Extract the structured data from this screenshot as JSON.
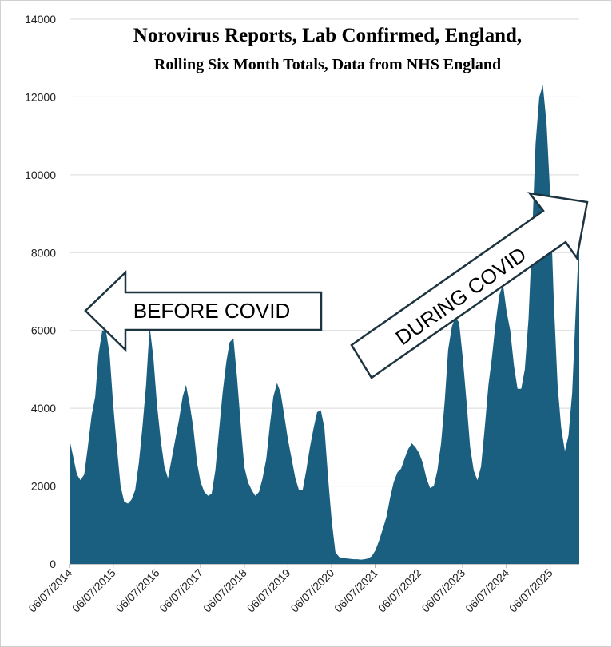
{
  "chart_data": {
    "type": "area",
    "title": "Norovirus Reports, Lab Confirmed, England,",
    "subtitle": "Rolling Six Month Totals, Data from NHS England",
    "annotations": [
      "BEFORE COVID",
      "DURING COVID"
    ],
    "color": "#1a5e80",
    "grid": true,
    "ylim": [
      0,
      14000
    ],
    "yticks": [
      0,
      2000,
      4000,
      6000,
      8000,
      10000,
      12000,
      14000
    ],
    "xlim": [
      "06/07/2014",
      "06/03/2026"
    ],
    "xticks": [
      "06/07/2014",
      "06/07/2015",
      "06/07/2016",
      "06/07/2017",
      "06/07/2018",
      "06/07/2019",
      "06/07/2020",
      "06/07/2021",
      "06/07/2022",
      "06/07/2023",
      "06/07/2024",
      "06/07/2025"
    ],
    "x": [
      "06/07/2014",
      "06/08/2014",
      "06/09/2014",
      "06/10/2014",
      "06/11/2014",
      "06/12/2014",
      "06/01/2015",
      "06/02/2015",
      "06/03/2015",
      "06/04/2015",
      "06/05/2015",
      "06/06/2015",
      "06/07/2015",
      "06/08/2015",
      "06/09/2015",
      "06/10/2015",
      "06/11/2015",
      "06/12/2015",
      "06/01/2016",
      "06/02/2016",
      "06/03/2016",
      "06/04/2016",
      "06/05/2016",
      "06/06/2016",
      "06/07/2016",
      "06/08/2016",
      "06/09/2016",
      "06/10/2016",
      "06/11/2016",
      "06/12/2016",
      "06/01/2017",
      "06/02/2017",
      "06/03/2017",
      "06/04/2017",
      "06/05/2017",
      "06/06/2017",
      "06/07/2017",
      "06/08/2017",
      "06/09/2017",
      "06/10/2017",
      "06/11/2017",
      "06/12/2017",
      "06/01/2018",
      "06/02/2018",
      "06/03/2018",
      "06/04/2018",
      "06/05/2018",
      "06/06/2018",
      "06/07/2018",
      "06/08/2018",
      "06/09/2018",
      "06/10/2018",
      "06/11/2018",
      "06/12/2018",
      "06/01/2019",
      "06/02/2019",
      "06/03/2019",
      "06/04/2019",
      "06/05/2019",
      "06/06/2019",
      "06/07/2019",
      "06/08/2019",
      "06/09/2019",
      "06/10/2019",
      "06/11/2019",
      "06/12/2019",
      "06/01/2020",
      "06/02/2020",
      "06/03/2020",
      "06/04/2020",
      "06/05/2020",
      "06/06/2020",
      "06/07/2020",
      "06/08/2020",
      "06/09/2020",
      "06/10/2020",
      "06/11/2020",
      "06/12/2020",
      "06/01/2021",
      "06/02/2021",
      "06/03/2021",
      "06/04/2021",
      "06/05/2021",
      "06/06/2021",
      "06/07/2021",
      "06/08/2021",
      "06/09/2021",
      "06/10/2021",
      "06/11/2021",
      "06/12/2021",
      "06/01/2022",
      "06/02/2022",
      "06/03/2022",
      "06/04/2022",
      "06/05/2022",
      "06/06/2022",
      "06/07/2022",
      "06/08/2022",
      "06/09/2022",
      "06/10/2022",
      "06/11/2022",
      "06/12/2022",
      "06/01/2023",
      "06/02/2023",
      "06/03/2023",
      "06/04/2023",
      "06/05/2023",
      "06/06/2023",
      "06/07/2023",
      "06/08/2023",
      "06/09/2023",
      "06/10/2023",
      "06/11/2023",
      "06/12/2023",
      "06/01/2024",
      "06/02/2024",
      "06/03/2024",
      "06/04/2024",
      "06/05/2024",
      "06/06/2024",
      "06/07/2024",
      "06/08/2024",
      "06/09/2024",
      "06/10/2024",
      "06/11/2024",
      "06/12/2024",
      "06/01/2025",
      "06/02/2025",
      "06/03/2025",
      "06/04/2025",
      "06/05/2025",
      "06/06/2025",
      "06/07/2025",
      "06/08/2025",
      "06/09/2025",
      "06/10/2025",
      "06/11/2025",
      "06/12/2025",
      "06/01/2026",
      "06/02/2026",
      "06/03/2026"
    ],
    "values": [
      3200,
      2750,
      2300,
      2150,
      2300,
      3000,
      3800,
      4300,
      5400,
      6000,
      6000,
      5400,
      4100,
      3000,
      2000,
      1600,
      1550,
      1650,
      1900,
      2600,
      3500,
      4600,
      6100,
      5300,
      4100,
      3200,
      2500,
      2200,
      2700,
      3200,
      3700,
      4300,
      4600,
      4100,
      3500,
      2600,
      2100,
      1850,
      1750,
      1800,
      2400,
      3400,
      4400,
      5200,
      5700,
      5800,
      4800,
      3600,
      2500,
      2100,
      1900,
      1750,
      1850,
      2200,
      2700,
      3600,
      4300,
      4650,
      4400,
      3800,
      3200,
      2700,
      2200,
      1900,
      1900,
      2400,
      3000,
      3500,
      3900,
      3950,
      3500,
      2200,
      1100,
      300,
      180,
      150,
      140,
      130,
      120,
      120,
      110,
      120,
      140,
      200,
      350,
      600,
      900,
      1200,
      1700,
      2100,
      2350,
      2450,
      2700,
      2950,
      3100,
      3000,
      2850,
      2600,
      2200,
      1950,
      2000,
      2400,
      3100,
      4200,
      5500,
      6100,
      6350,
      6200,
      5300,
      4200,
      3000,
      2400,
      2150,
      2500,
      3500,
      4600,
      5300,
      6200,
      6900,
      7200,
      6500,
      6000,
      5100,
      4500,
      4500,
      5000,
      6300,
      8500,
      10800,
      12000,
      12300,
      11300,
      9500,
      6700,
      4600,
      3500,
      2900,
      3300,
      4400,
      6600,
      8400
    ]
  }
}
